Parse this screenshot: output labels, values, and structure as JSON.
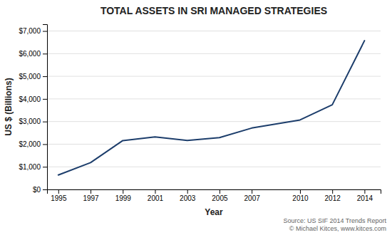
{
  "chart_data": {
    "type": "line",
    "title": "TOTAL ASSETS IN SRI MANAGED STRATEGIES",
    "x_label": "Year",
    "y_label": "US $ (Billions)",
    "x": [
      1995,
      1997,
      1999,
      2001,
      2003,
      2005,
      2007,
      2010,
      2012,
      2014
    ],
    "values": [
      639,
      1185,
      2159,
      2323,
      2164,
      2290,
      2711,
      3069,
      3740,
      6572
    ],
    "color": "#1c3d6b",
    "xlim": [
      1994.3,
      2015.0
    ],
    "xticks": [
      1995,
      1997,
      1999,
      2001,
      2003,
      2005,
      2007,
      2010,
      2012,
      2014
    ],
    "ylim": [
      0,
      7300
    ],
    "yticks": [
      {
        "value": 0,
        "label": "$0"
      },
      {
        "value": 1000,
        "label": "$1,000"
      },
      {
        "value": 2000,
        "label": "$2,000"
      },
      {
        "value": 3000,
        "label": "$3,000"
      },
      {
        "value": 4000,
        "label": "$4,000"
      },
      {
        "value": 5000,
        "label": "$5,000"
      },
      {
        "value": 6000,
        "label": "$6,000"
      },
      {
        "value": 7000,
        "label": "$7,000"
      }
    ],
    "grid": "y",
    "annotations": [
      "Source: US SIF 2014 Trends Report",
      "© Michael Kitces, www.kitces.com"
    ]
  }
}
